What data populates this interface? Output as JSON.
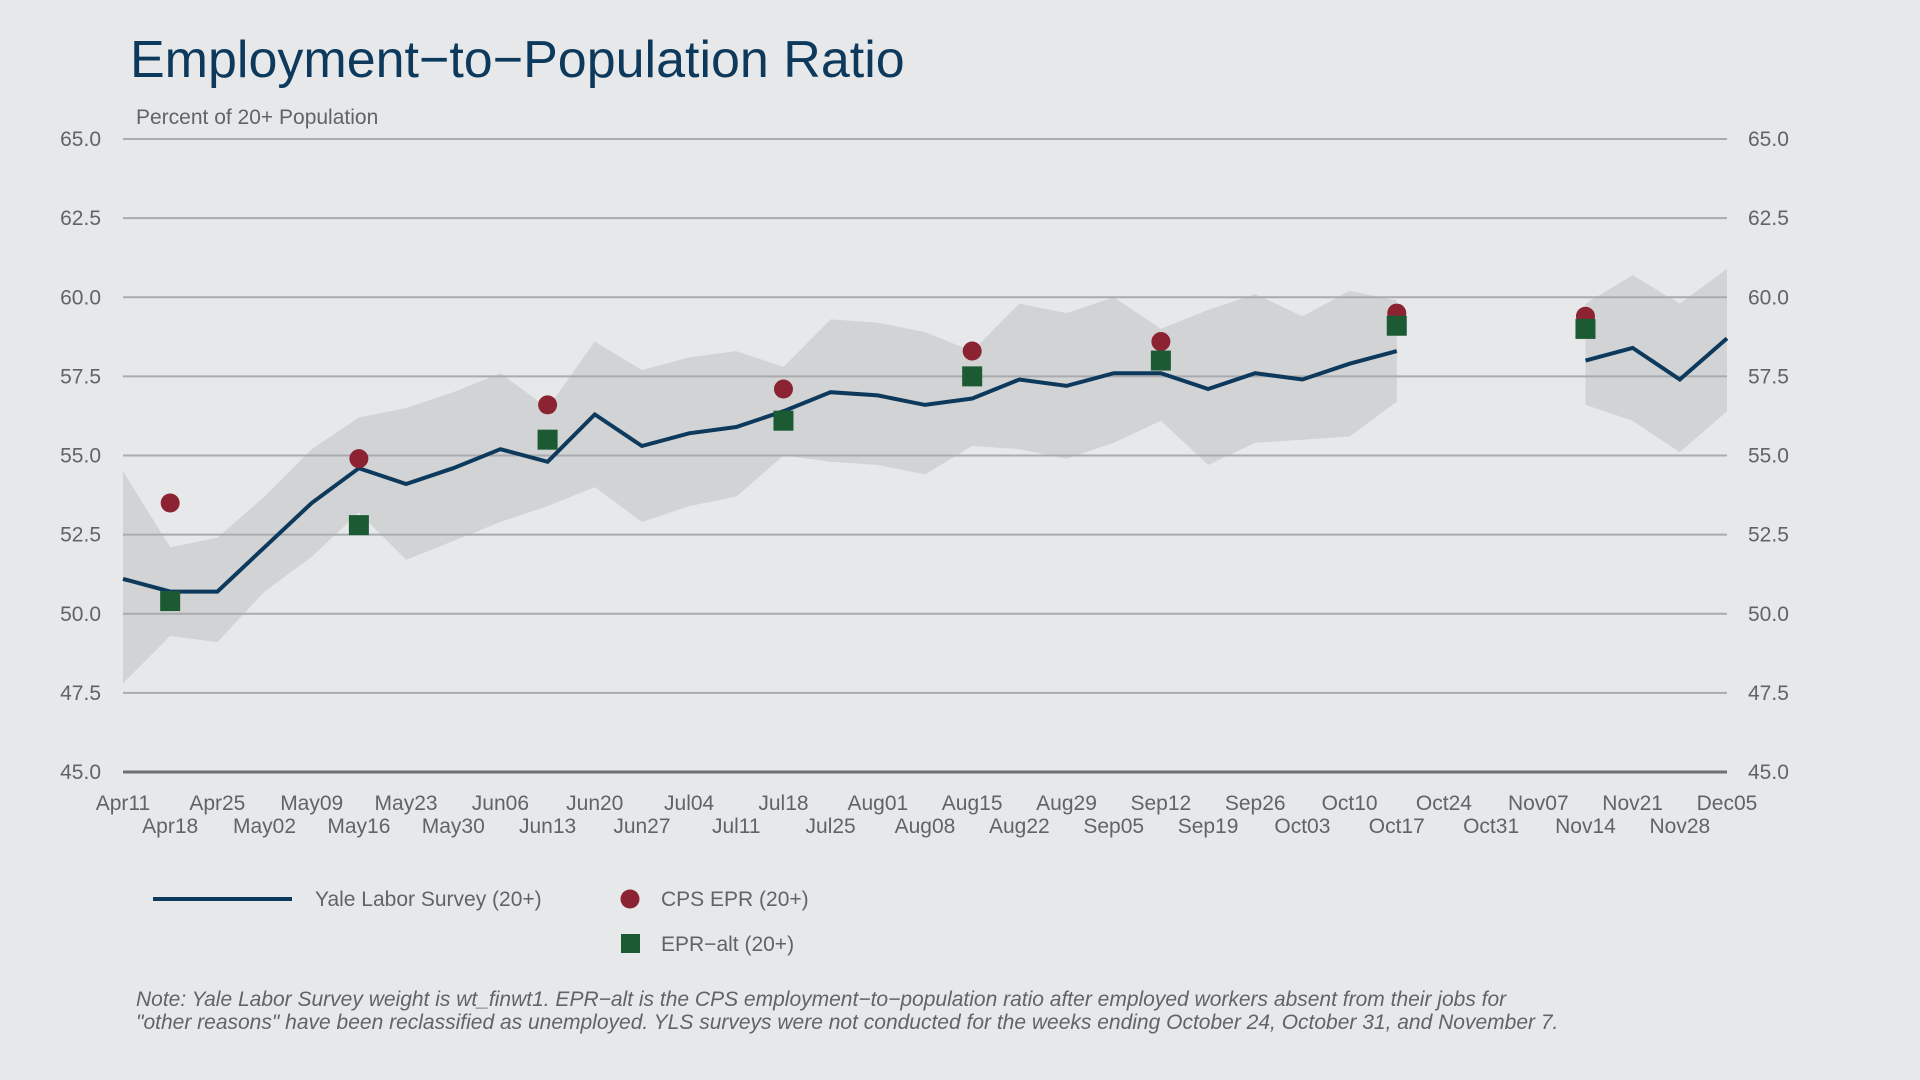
{
  "chart_data": {
    "type": "line",
    "title": "Employment−to−Population Ratio",
    "subtitle": "Percent of 20+ Population",
    "xlabel": "",
    "ylabel": "",
    "ylim": [
      45.0,
      65.0
    ],
    "yticks": [
      "45.0",
      "47.5",
      "50.0",
      "52.5",
      "55.0",
      "57.5",
      "60.0",
      "62.5",
      "65.0"
    ],
    "ytick_values": [
      45.0,
      47.5,
      50.0,
      52.5,
      55.0,
      57.5,
      60.0,
      62.5,
      65.0
    ],
    "grid": true,
    "legend_position": "bottom-left",
    "x": [
      "Apr11",
      "Apr18",
      "Apr25",
      "May02",
      "May09",
      "May16",
      "May23",
      "May30",
      "Jun06",
      "Jun13",
      "Jun20",
      "Jun27",
      "Jul04",
      "Jul11",
      "Jul18",
      "Jul25",
      "Aug01",
      "Aug08",
      "Aug15",
      "Aug22",
      "Aug29",
      "Sep05",
      "Sep12",
      "Sep19",
      "Sep26",
      "Oct03",
      "Oct10",
      "Oct17",
      "Oct24",
      "Oct31",
      "Nov07",
      "Nov14",
      "Nov21",
      "Nov28",
      "Dec05"
    ],
    "series": [
      {
        "name": "Yale Labor Survey (20+)",
        "kind": "line",
        "color": "#0d3a5c",
        "values": [
          51.1,
          50.7,
          50.7,
          52.1,
          53.5,
          54.6,
          54.1,
          54.6,
          55.2,
          54.8,
          56.3,
          55.3,
          55.7,
          55.9,
          56.4,
          57.0,
          56.9,
          56.6,
          56.8,
          57.4,
          57.2,
          57.6,
          57.6,
          57.1,
          57.6,
          57.4,
          57.9,
          58.3,
          null,
          null,
          null,
          58.0,
          58.4,
          57.4,
          58.7
        ],
        "band_upper": [
          54.5,
          52.1,
          52.4,
          53.7,
          55.2,
          56.2,
          56.5,
          57.0,
          57.6,
          56.5,
          58.6,
          57.7,
          58.1,
          58.3,
          57.8,
          59.3,
          59.2,
          58.9,
          58.3,
          59.8,
          59.5,
          60.0,
          59.0,
          59.6,
          60.1,
          59.4,
          60.2,
          59.9,
          null,
          null,
          null,
          59.8,
          60.7,
          59.8,
          60.9
        ],
        "band_lower": [
          47.8,
          49.3,
          49.1,
          50.7,
          51.8,
          53.2,
          51.7,
          52.3,
          52.9,
          53.4,
          54.0,
          52.9,
          53.4,
          53.7,
          55.0,
          54.8,
          54.7,
          54.4,
          55.3,
          55.2,
          54.9,
          55.4,
          56.1,
          54.7,
          55.4,
          55.5,
          55.6,
          56.7,
          null,
          null,
          null,
          56.6,
          56.1,
          55.1,
          56.4
        ],
        "band_color": "#d2d3d5"
      },
      {
        "name": "CPS EPR (20+)",
        "kind": "points",
        "color": "#8b2332",
        "x": [
          "Apr18",
          "May16",
          "Jun13",
          "Jul18",
          "Aug15",
          "Sep12",
          "Oct17",
          "Nov14"
        ],
        "values": [
          53.5,
          54.9,
          56.6,
          57.1,
          58.3,
          58.6,
          59.5,
          59.4
        ]
      },
      {
        "name": "EPR−alt (20+)",
        "kind": "points",
        "color": "#1c5a34",
        "x": [
          "Apr18",
          "May16",
          "Jun13",
          "Jul18",
          "Aug15",
          "Sep12",
          "Oct17",
          "Nov14"
        ],
        "values": [
          50.4,
          52.8,
          55.5,
          56.1,
          57.5,
          58.0,
          59.1,
          59.0
        ]
      }
    ],
    "note": [
      "Note: Yale Labor Survey weight is wt_finwt1. EPR−alt is the CPS employment−to−population ratio after employed workers absent from their jobs for",
      "\"other reasons\" have been reclassified as unemployed. YLS surveys were not conducted for the weeks ending October 24, October 31, and November 7."
    ]
  }
}
